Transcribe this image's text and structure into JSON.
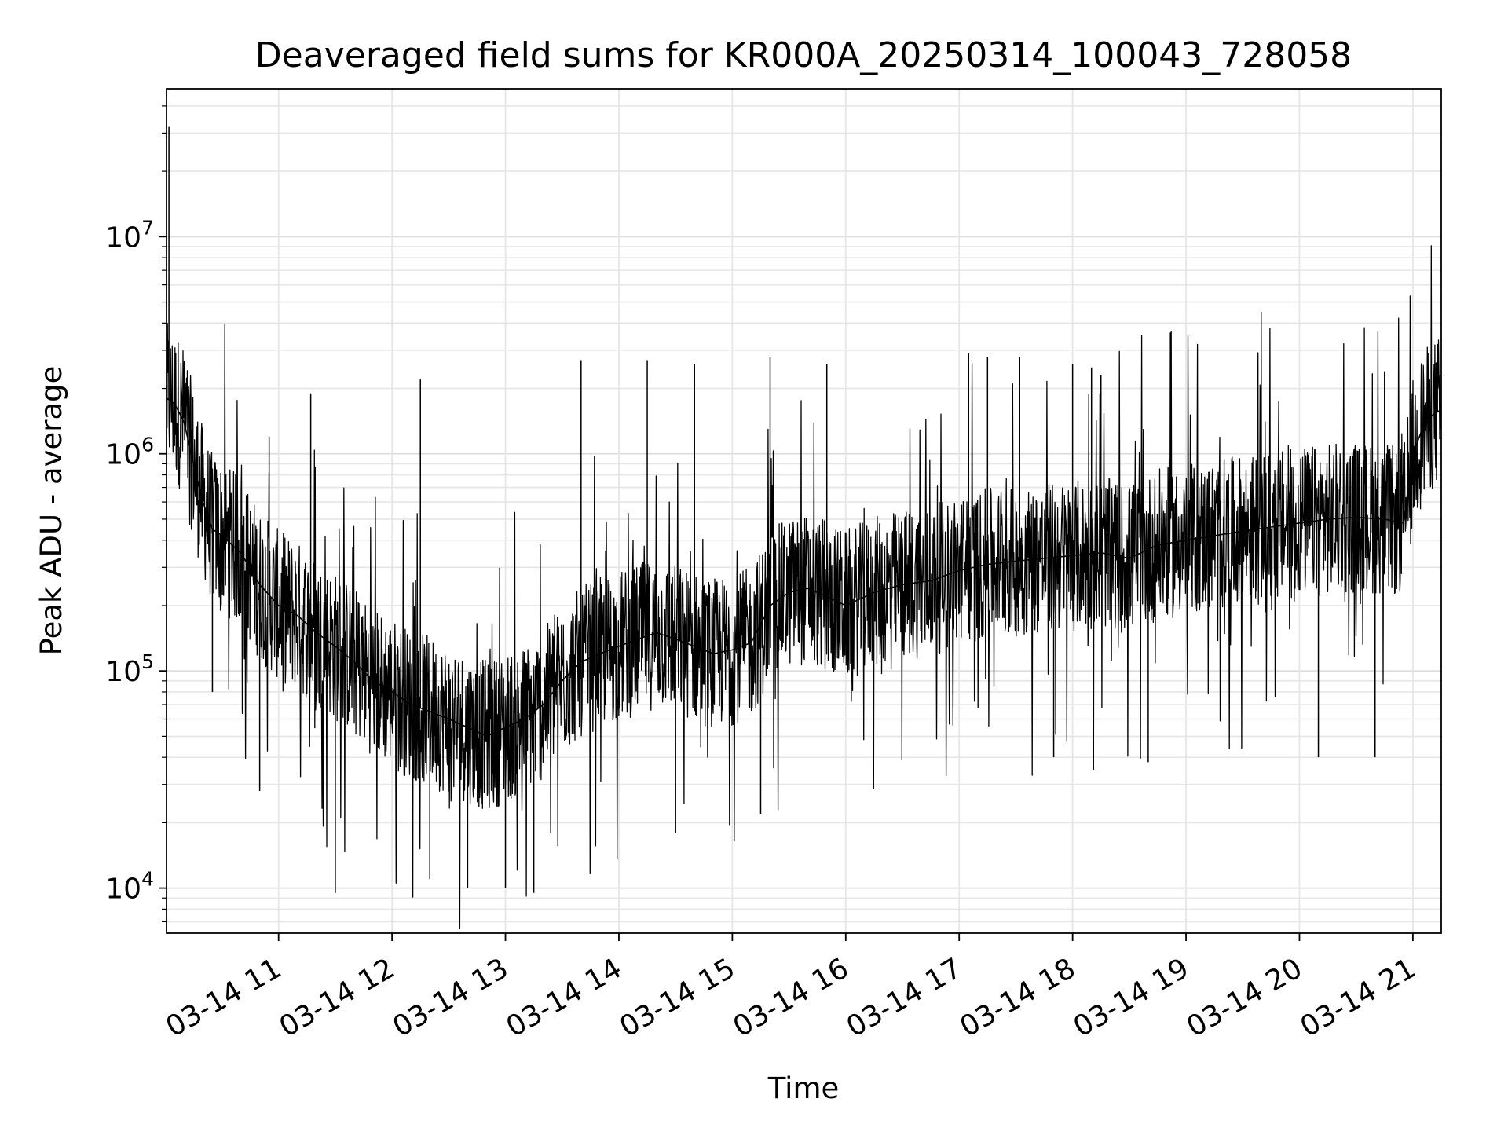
{
  "chart_data": {
    "type": "line",
    "title": "Deaveraged field sums for KR000A_20250314_100043_728058",
    "xlabel": "Time",
    "ylabel": "Peak ADU - average",
    "x_axis": {
      "kind": "datetime",
      "range": [
        "2025-03-14T10:00:43",
        "2025-03-14T21:15:00"
      ],
      "ticks": [
        {
          "value": "2025-03-14T11:00:00",
          "label": "03-14 11"
        },
        {
          "value": "2025-03-14T12:00:00",
          "label": "03-14 12"
        },
        {
          "value": "2025-03-14T13:00:00",
          "label": "03-14 13"
        },
        {
          "value": "2025-03-14T14:00:00",
          "label": "03-14 14"
        },
        {
          "value": "2025-03-14T15:00:00",
          "label": "03-14 15"
        },
        {
          "value": "2025-03-14T16:00:00",
          "label": "03-14 16"
        },
        {
          "value": "2025-03-14T17:00:00",
          "label": "03-14 17"
        },
        {
          "value": "2025-03-14T18:00:00",
          "label": "03-14 18"
        },
        {
          "value": "2025-03-14T19:00:00",
          "label": "03-14 19"
        },
        {
          "value": "2025-03-14T20:00:00",
          "label": "03-14 20"
        },
        {
          "value": "2025-03-14T21:00:00",
          "label": "03-14 21"
        }
      ],
      "tick_label_rotation": "30 degrees"
    },
    "y_axis": {
      "scale": "log",
      "range": [
        6200,
        48000000
      ],
      "ticks": [
        {
          "value": 10000,
          "base": "10",
          "exponent": "4"
        },
        {
          "value": 100000,
          "base": "10",
          "exponent": "5"
        },
        {
          "value": 1000000,
          "base": "10",
          "exponent": "6"
        },
        {
          "value": 10000000,
          "base": "10",
          "exponent": "7"
        }
      ]
    },
    "grid": true,
    "grid_minor": true,
    "line_color": "#000000",
    "series": [
      {
        "x": [
          "2025-03-14T10:01:00",
          "2025-03-14T10:05:00",
          "2025-03-14T10:10:00",
          "2025-03-14T10:15:00",
          "2025-03-14T10:20:00",
          "2025-03-14T10:25:00",
          "2025-03-14T10:30:00",
          "2025-03-14T10:40:00",
          "2025-03-14T10:50:00",
          "2025-03-14T11:00:00",
          "2025-03-14T11:10:00",
          "2025-03-14T11:20:00",
          "2025-03-14T11:30:00",
          "2025-03-14T11:40:00",
          "2025-03-14T11:50:00",
          "2025-03-14T12:00:00",
          "2025-03-14T12:10:00",
          "2025-03-14T12:20:00",
          "2025-03-14T12:30:00",
          "2025-03-14T12:40:00",
          "2025-03-14T12:50:00",
          "2025-03-14T13:00:00",
          "2025-03-14T13:10:00",
          "2025-03-14T13:20:00",
          "2025-03-14T13:30:00",
          "2025-03-14T13:40:00",
          "2025-03-14T13:50:00",
          "2025-03-14T14:00:00",
          "2025-03-14T14:10:00",
          "2025-03-14T14:20:00",
          "2025-03-14T14:30:00",
          "2025-03-14T14:40:00",
          "2025-03-14T14:50:00",
          "2025-03-14T15:00:00",
          "2025-03-14T15:10:00",
          "2025-03-14T15:20:00",
          "2025-03-14T15:30:00",
          "2025-03-14T15:40:00",
          "2025-03-14T15:50:00",
          "2025-03-14T16:00:00",
          "2025-03-14T16:15:00",
          "2025-03-14T16:30:00",
          "2025-03-14T16:45:00",
          "2025-03-14T17:00:00",
          "2025-03-14T17:15:00",
          "2025-03-14T17:30:00",
          "2025-03-14T17:45:00",
          "2025-03-14T18:00:00",
          "2025-03-14T18:15:00",
          "2025-03-14T18:30:00",
          "2025-03-14T18:45:00",
          "2025-03-14T19:00:00",
          "2025-03-14T19:15:00",
          "2025-03-14T19:30:00",
          "2025-03-14T19:45:00",
          "2025-03-14T20:00:00",
          "2025-03-14T20:15:00",
          "2025-03-14T20:30:00",
          "2025-03-14T20:45:00",
          "2025-03-14T20:55:00",
          "2025-03-14T21:00:00",
          "2025-03-14T21:05:00",
          "2025-03-14T21:10:00",
          "2025-03-14T21:15:00"
        ],
        "y": [
          1800000,
          1700000,
          1400000,
          900000,
          600000,
          450000,
          420000,
          350000,
          250000,
          200000,
          180000,
          150000,
          130000,
          110000,
          90000,
          80000,
          70000,
          65000,
          60000,
          55000,
          50000,
          55000,
          60000,
          70000,
          90000,
          110000,
          120000,
          130000,
          140000,
          150000,
          140000,
          130000,
          120000,
          125000,
          135000,
          200000,
          230000,
          240000,
          220000,
          200000,
          230000,
          250000,
          260000,
          290000,
          310000,
          320000,
          330000,
          340000,
          350000,
          330000,
          380000,
          400000,
          420000,
          440000,
          460000,
          480000,
          500000,
          510000,
          500000,
          480000,
          1000000,
          1300000,
          1500000,
          1600000
        ],
        "spikes": [
          {
            "x": "2025-03-14T10:02:00",
            "y": 32000000
          },
          {
            "x": "2025-03-14T10:55:00",
            "y": 1200000
          },
          {
            "x": "2025-03-14T11:17:00",
            "y": 1900000
          },
          {
            "x": "2025-03-14T12:15:00",
            "y": 2200000
          },
          {
            "x": "2025-03-14T13:40:00",
            "y": 2700000
          },
          {
            "x": "2025-03-14T14:15:00",
            "y": 2700000
          },
          {
            "x": "2025-03-14T14:40:00",
            "y": 2600000
          },
          {
            "x": "2025-03-14T15:20:00",
            "y": 2800000
          },
          {
            "x": "2025-03-14T15:50:00",
            "y": 2600000
          },
          {
            "x": "2025-03-14T17:05:00",
            "y": 2900000
          },
          {
            "x": "2025-03-14T17:15:00",
            "y": 2800000
          },
          {
            "x": "2025-03-14T17:32:00",
            "y": 2800000
          },
          {
            "x": "2025-03-14T18:00:00",
            "y": 2600000
          },
          {
            "x": "2025-03-14T18:10:00",
            "y": 2500000
          },
          {
            "x": "2025-03-14T18:15:00",
            "y": 2300000
          },
          {
            "x": "2025-03-14T20:45:00",
            "y": 2400000
          },
          {
            "x": "2025-03-14T21:13:00",
            "y": 3200000
          }
        ],
        "dips": [
          {
            "x": "2025-03-14T10:25:00",
            "y": 80000
          },
          {
            "x": "2025-03-14T10:50:00",
            "y": 28000
          },
          {
            "x": "2025-03-14T11:30:00",
            "y": 9500
          },
          {
            "x": "2025-03-14T12:20:00",
            "y": 11000
          },
          {
            "x": "2025-03-14T12:40:00",
            "y": 10000
          },
          {
            "x": "2025-03-14T13:00:00",
            "y": 10000
          },
          {
            "x": "2025-03-14T13:15:00",
            "y": 9500
          },
          {
            "x": "2025-03-14T14:30:00",
            "y": 18000
          },
          {
            "x": "2025-03-14T15:15:00",
            "y": 22000
          },
          {
            "x": "2025-03-14T17:50:00",
            "y": 40000
          },
          {
            "x": "2025-03-14T18:40:00",
            "y": 38000
          },
          {
            "x": "2025-03-14T20:10:00",
            "y": 40000
          },
          {
            "x": "2025-03-14T20:40:00",
            "y": 40000
          }
        ]
      }
    ]
  }
}
